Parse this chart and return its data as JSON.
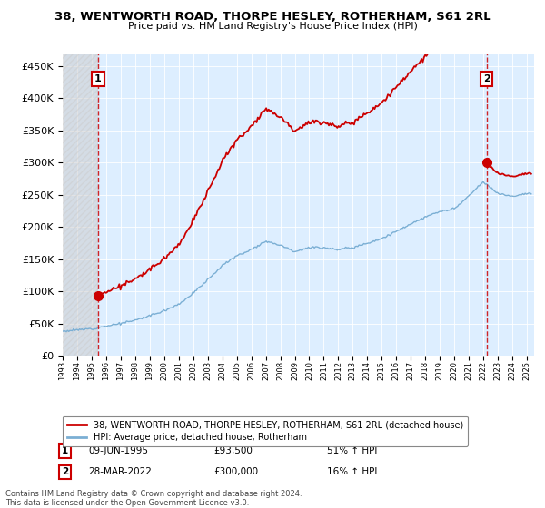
{
  "title": "38, WENTWORTH ROAD, THORPE HESLEY, ROTHERHAM, S61 2RL",
  "subtitle": "Price paid vs. HM Land Registry's House Price Index (HPI)",
  "legend_line1": "38, WENTWORTH ROAD, THORPE HESLEY, ROTHERHAM, S61 2RL (detached house)",
  "legend_line2": "HPI: Average price, detached house, Rotherham",
  "sale1_date": 1995.44,
  "sale1_price": 93500,
  "sale1_label": "1",
  "sale1_text": "09-JUN-1995",
  "sale1_amount": "£93,500",
  "sale1_hpi": "51% ↑ HPI",
  "sale2_date": 2022.23,
  "sale2_price": 300000,
  "sale2_label": "2",
  "sale2_text": "28-MAR-2022",
  "sale2_amount": "£300,000",
  "sale2_hpi": "16% ↑ HPI",
  "xmin": 1993.0,
  "xmax": 2025.5,
  "ymin": 0,
  "ymax": 470000,
  "red_color": "#cc0000",
  "blue_color": "#7bafd4",
  "hatch_color": "#cccccc",
  "footnote": "Contains HM Land Registry data © Crown copyright and database right 2024.\nThis data is licensed under the Open Government Licence v3.0.",
  "hpi_years": [
    1993,
    1994,
    1995,
    1996,
    1997,
    1998,
    1999,
    2000,
    2001,
    2002,
    2003,
    2004,
    2005,
    2006,
    2007,
    2008,
    2009,
    2010,
    2011,
    2012,
    2013,
    2014,
    2015,
    2016,
    2017,
    2018,
    2019,
    2020,
    2021,
    2022,
    2023,
    2024,
    2025
  ],
  "hpi_prices": [
    38000,
    40000,
    42000,
    46000,
    50000,
    55000,
    62000,
    70000,
    80000,
    97000,
    118000,
    140000,
    155000,
    165000,
    178000,
    172000,
    162000,
    168000,
    168000,
    165000,
    168000,
    175000,
    182000,
    193000,
    205000,
    215000,
    224000,
    228000,
    248000,
    270000,
    252000,
    248000,
    252000
  ]
}
